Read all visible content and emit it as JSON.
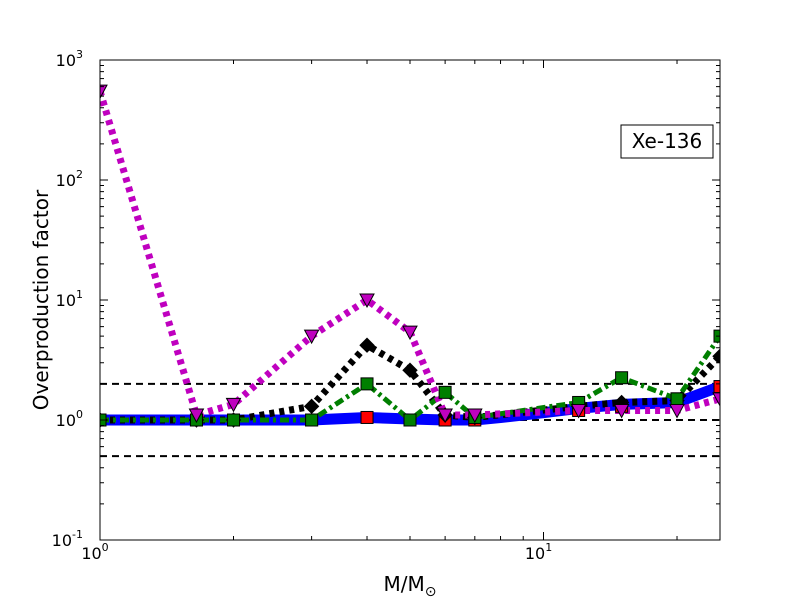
{
  "chart_data": {
    "type": "line",
    "xlabel": "M/M",
    "xlabel_sub": "⊙",
    "ylabel": "Overproduction factor",
    "annotation": "Xe-136",
    "x_scale": "log",
    "y_scale": "log",
    "xlim": [
      1,
      25
    ],
    "ylim": [
      0.1,
      1000
    ],
    "x_ticks": [
      {
        "base": "10",
        "exp": "0",
        "value": 1
      },
      {
        "base": "10",
        "exp": "1",
        "value": 10
      }
    ],
    "y_ticks": [
      {
        "base": "10",
        "exp": "-1",
        "value": 0.1
      },
      {
        "base": "10",
        "exp": "0",
        "value": 1
      },
      {
        "base": "10",
        "exp": "1",
        "value": 10
      },
      {
        "base": "10",
        "exp": "2",
        "value": 100
      },
      {
        "base": "10",
        "exp": "3",
        "value": 1000
      }
    ],
    "reference_lines": [
      0.5,
      1,
      2
    ],
    "series": [
      {
        "color": "#ff0000",
        "line": "solid",
        "marker": "square",
        "x": [
          1,
          1.65,
          2,
          3,
          4,
          5,
          6,
          7,
          12,
          15,
          20,
          25
        ],
        "y": [
          1.0,
          1.0,
          1.0,
          1.0,
          1.05,
          1.0,
          1.0,
          1.0,
          1.2,
          1.3,
          1.5,
          1.9
        ]
      },
      {
        "color": "#0000ff",
        "line": "solid",
        "marker": "none",
        "x": [
          1,
          1.65,
          2,
          3,
          4,
          5,
          6,
          7,
          8,
          10,
          12,
          15,
          20,
          25
        ],
        "y": [
          1.0,
          1.0,
          1.0,
          1.0,
          1.05,
          1.02,
          1.0,
          1.0,
          1.05,
          1.15,
          1.25,
          1.35,
          1.4,
          1.9
        ]
      },
      {
        "color": "#000000",
        "line": "dotted",
        "marker": "diamond",
        "x": [
          1,
          1.65,
          2,
          3,
          4,
          5,
          6,
          7,
          12,
          15,
          20,
          25
        ],
        "y": [
          1.0,
          1.0,
          1.0,
          1.3,
          4.2,
          2.6,
          1.1,
          1.05,
          1.3,
          1.4,
          1.45,
          3.4
        ]
      },
      {
        "color": "#007f00",
        "line": "dashdot",
        "marker": "square",
        "x": [
          1,
          1.65,
          2,
          3,
          4,
          5,
          6,
          7,
          12,
          15,
          20,
          25
        ],
        "y": [
          1.0,
          1.0,
          1.0,
          1.0,
          2.0,
          1.0,
          1.7,
          1.05,
          1.4,
          2.25,
          1.5,
          5.0
        ]
      },
      {
        "color": "#bf00bf",
        "line": "dotted",
        "marker": "triangle-down",
        "x": [
          1,
          1.65,
          2,
          3,
          4,
          5,
          6,
          7,
          12,
          15,
          20,
          25
        ],
        "y": [
          550,
          1.1,
          1.35,
          5.0,
          10,
          5.4,
          1.1,
          1.1,
          1.2,
          1.2,
          1.2,
          1.5
        ]
      }
    ]
  }
}
